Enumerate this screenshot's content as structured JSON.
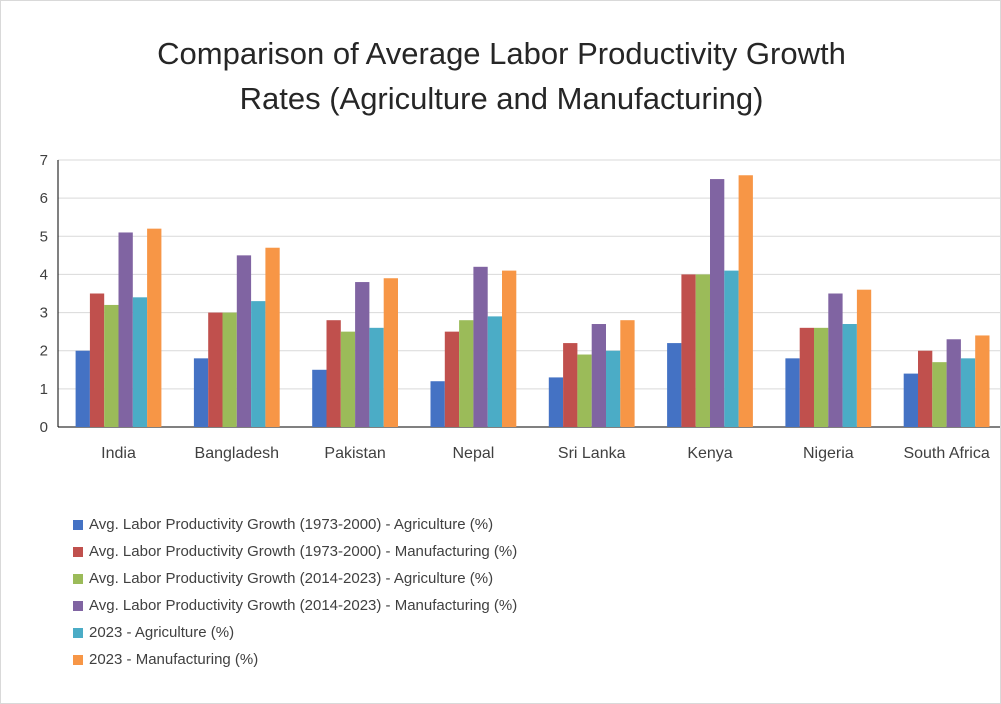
{
  "chart_data": {
    "type": "bar",
    "title": "Comparison of Average Labor Productivity Growth\nRates (Agriculture and Manufacturing)",
    "categories": [
      "India",
      "Bangladesh",
      "Pakistan",
      "Nepal",
      "Sri Lanka",
      "Kenya",
      "Nigeria",
      "South Africa"
    ],
    "series": [
      {
        "name": "Avg. Labor Productivity Growth (1973-2000) - Agriculture (%)",
        "color": "#4472c4",
        "values": [
          2.0,
          1.8,
          1.5,
          1.2,
          1.3,
          2.2,
          1.8,
          1.4
        ]
      },
      {
        "name": "Avg. Labor Productivity Growth (1973-2000) - Manufacturing (%)",
        "color": "#c0504d",
        "values": [
          3.5,
          3.0,
          2.8,
          2.5,
          2.2,
          4.0,
          2.6,
          2.0
        ]
      },
      {
        "name": "Avg. Labor Productivity Growth (2014-2023) - Agriculture (%)",
        "color": "#9bbb59",
        "values": [
          3.2,
          3.0,
          2.5,
          2.8,
          1.9,
          4.0,
          2.6,
          1.7
        ]
      },
      {
        "name": "Avg. Labor Productivity Growth (2014-2023) - Manufacturing (%)",
        "color": "#8064a2",
        "values": [
          5.1,
          4.5,
          3.8,
          4.2,
          2.7,
          6.5,
          3.5,
          2.3
        ]
      },
      {
        "name": "2023 - Agriculture (%)",
        "color": "#4bacc6",
        "values": [
          3.4,
          3.3,
          2.6,
          2.9,
          2.0,
          4.1,
          2.7,
          1.8
        ]
      },
      {
        "name": "2023 - Manufacturing (%)",
        "color": "#f79646",
        "values": [
          5.2,
          4.7,
          3.9,
          4.1,
          2.8,
          6.6,
          3.6,
          2.4
        ]
      }
    ],
    "ylim": [
      0,
      7
    ],
    "yticks": [
      0,
      1,
      2,
      3,
      4,
      5,
      6,
      7
    ],
    "grid": true,
    "legend_position": "bottom-left"
  }
}
